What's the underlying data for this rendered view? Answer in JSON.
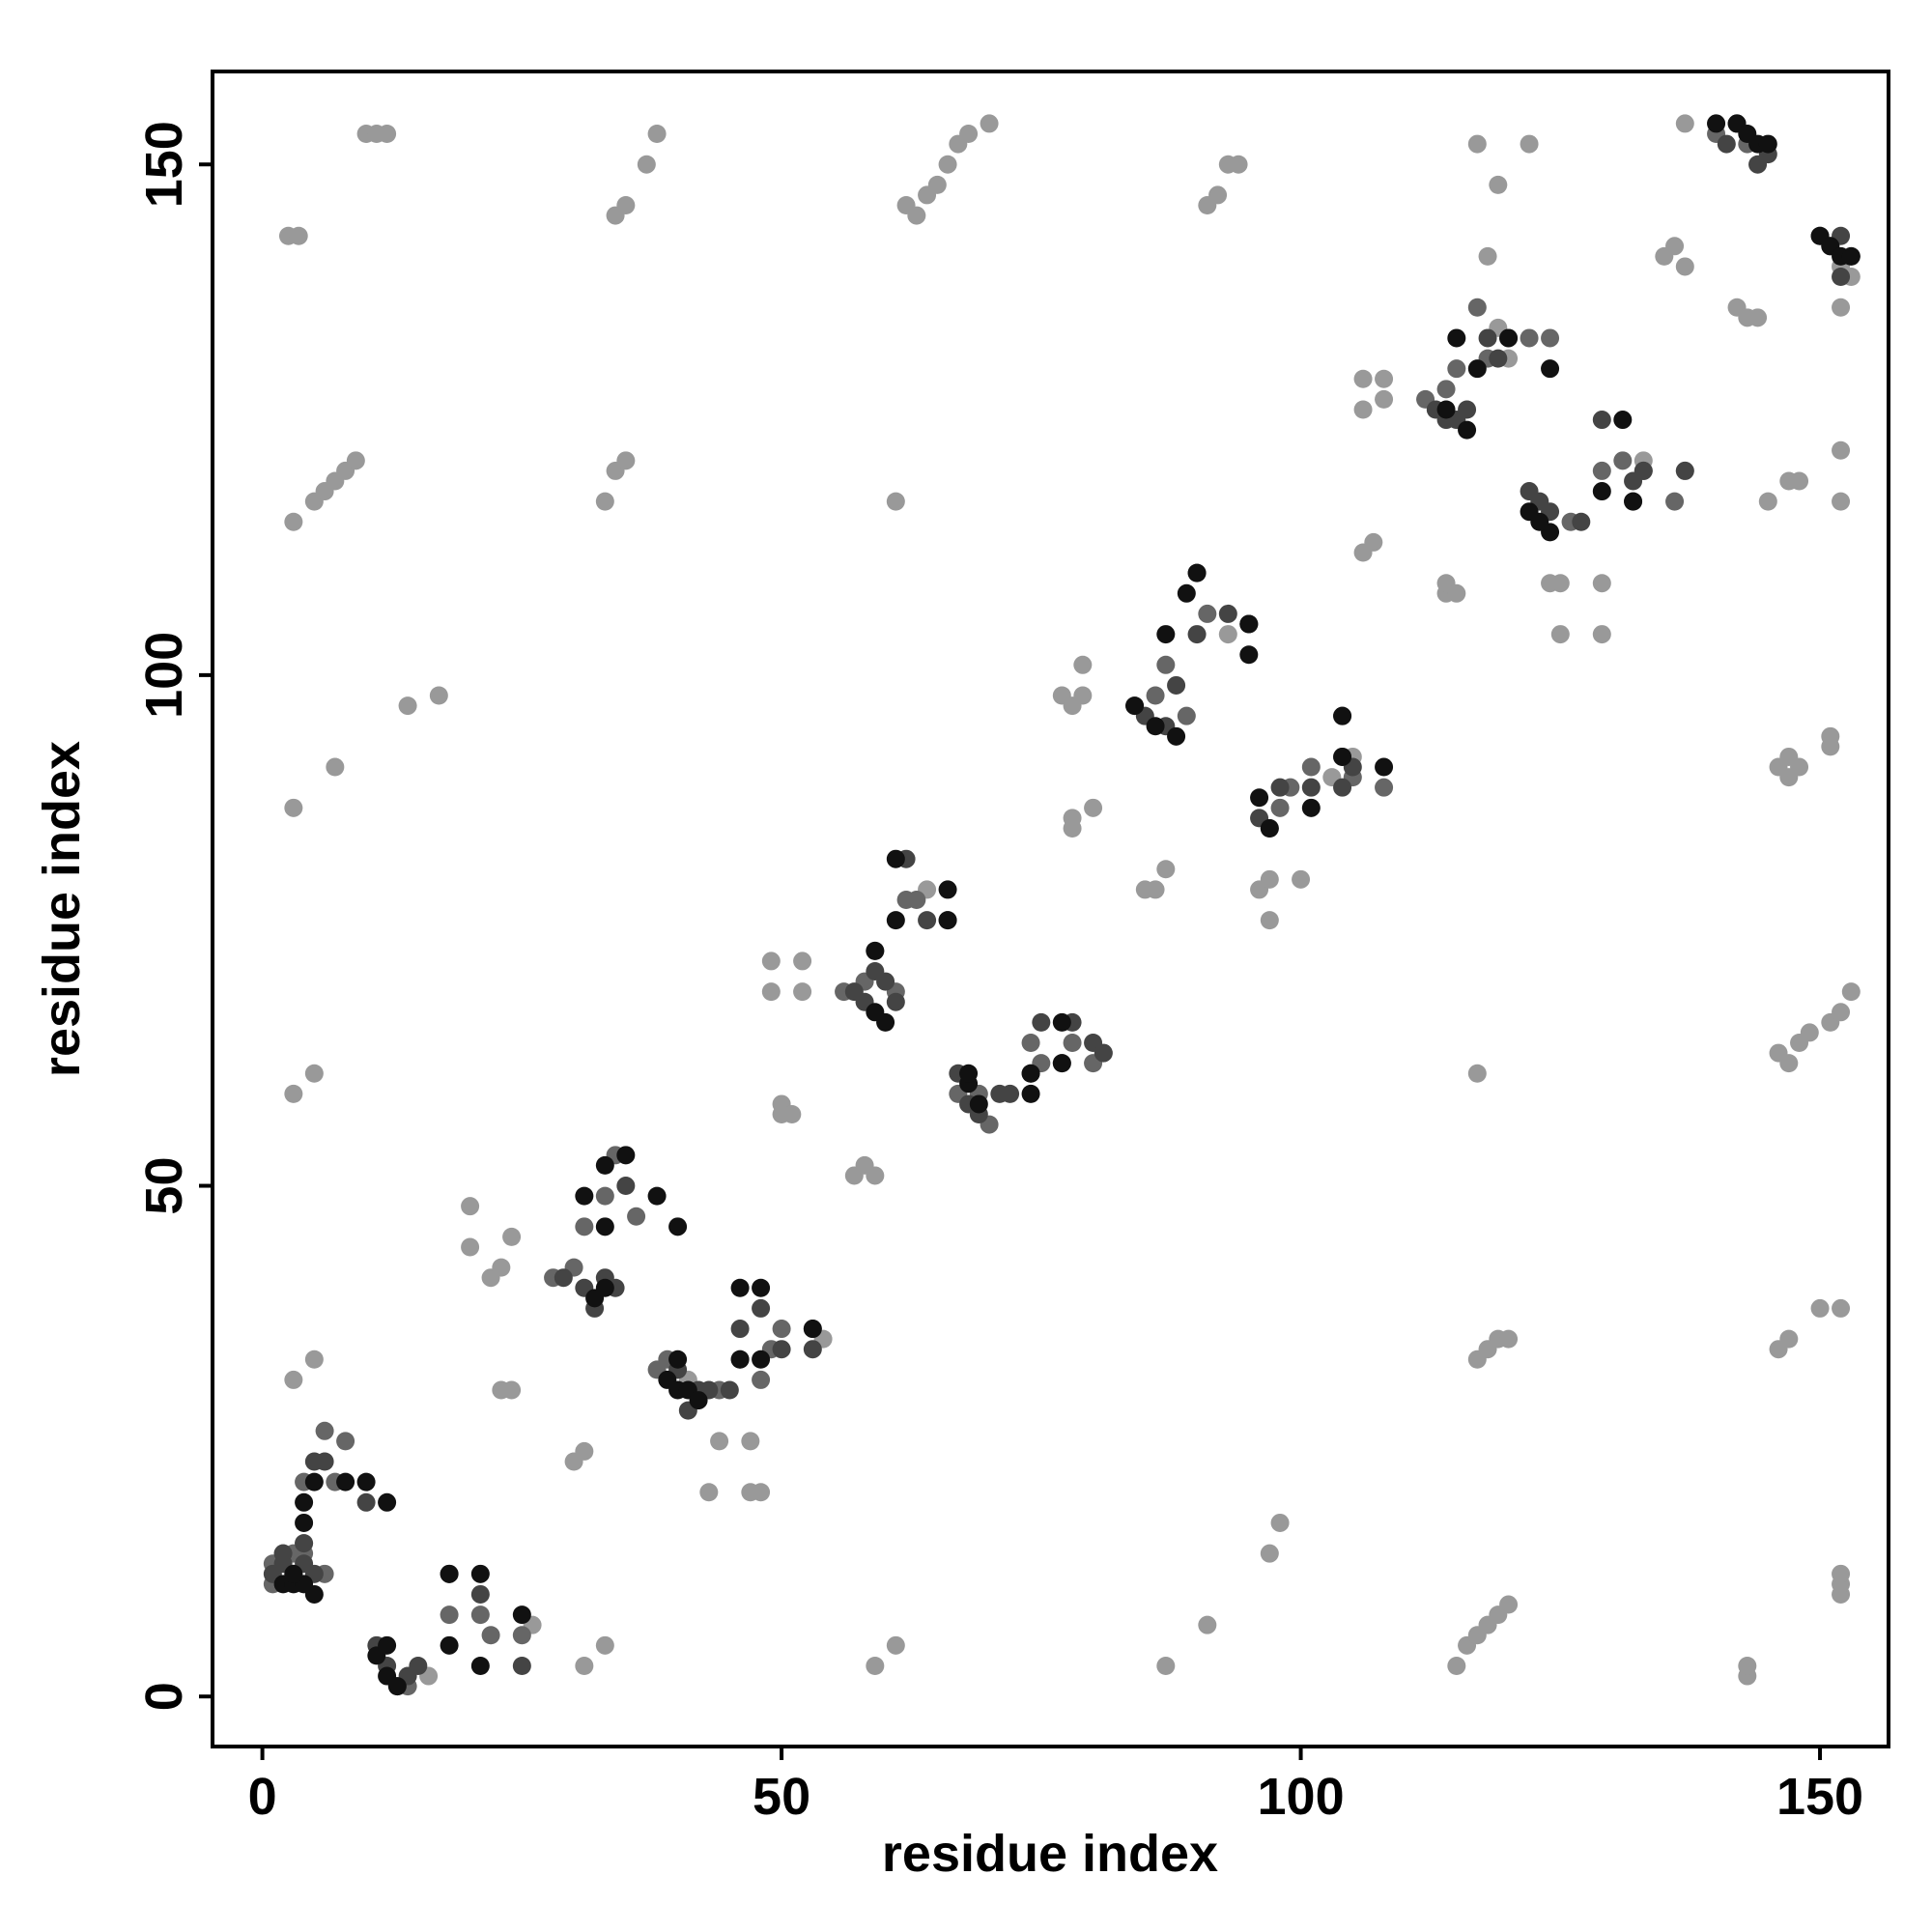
{
  "chart_data": {
    "type": "scatter",
    "x_label": "residue index",
    "y_label": "residue index",
    "xlim": [
      -4.8,
      156.6
    ],
    "ylim": [
      -4.9,
      159.1
    ],
    "xticks": [
      0,
      50,
      100,
      150
    ],
    "yticks": [
      0,
      50,
      100,
      150
    ],
    "grid": false,
    "series": [
      {
        "color": "#999999",
        "x": [
          2.5,
          3.5,
          10,
          11,
          12,
          37,
          38,
          34,
          35,
          62,
          63,
          64,
          65,
          66,
          67,
          68,
          70,
          91,
          92,
          93,
          94,
          117,
          122,
          118,
          119,
          137,
          140,
          3,
          5,
          6,
          7,
          8,
          9,
          33,
          34,
          35,
          61,
          3,
          7,
          14,
          17,
          3,
          5,
          3,
          5,
          145,
          147,
          148,
          152,
          152,
          151,
          151,
          146,
          147,
          147,
          148,
          146,
          147,
          148,
          149,
          151,
          152,
          153,
          117,
          117,
          118,
          119,
          120,
          146,
          147,
          150,
          152,
          152,
          152,
          152,
          143,
          143,
          115,
          116,
          117,
          118,
          119,
          120,
          98,
          97,
          91,
          87,
          61,
          59,
          33,
          31,
          20,
          20,
          22,
          23,
          24,
          23,
          24,
          30,
          31,
          48,
          43,
          44,
          47,
          47,
          49,
          49,
          52,
          52,
          50,
          50,
          51,
          57,
          58,
          59,
          77,
          78,
          79,
          79,
          78,
          78,
          80,
          85,
          86,
          87,
          96,
          97,
          100,
          97,
          106,
          106,
          108,
          108,
          106,
          107,
          114,
          114,
          115,
          124,
          125,
          125,
          129,
          129,
          142,
          143,
          144,
          152,
          152,
          136,
          137,
          135,
          2,
          4,
          16,
          26,
          41,
          54,
          64,
          81,
          93,
          103,
          105,
          119,
          120,
          133,
          137,
          153
        ],
        "values": [
          143,
          143,
          153,
          153,
          153,
          150,
          153,
          145,
          146,
          146,
          145,
          147,
          148,
          150,
          152,
          153,
          154,
          146,
          147,
          150,
          150,
          152,
          152,
          141,
          148,
          154,
          154,
          115,
          117,
          118,
          119,
          120,
          121,
          117,
          120,
          121,
          117,
          87,
          91,
          97,
          98,
          59,
          61,
          31,
          33,
          117,
          119,
          119,
          117,
          122,
          93,
          94,
          91,
          90,
          92,
          91,
          63,
          62,
          64,
          65,
          66,
          67,
          69,
          61,
          33,
          34,
          35,
          35,
          34,
          35,
          38,
          38,
          10,
          11,
          12,
          2,
          3,
          3,
          5,
          6,
          7,
          8,
          9,
          17,
          14,
          7,
          3,
          5,
          3,
          5,
          3,
          48,
          44,
          41,
          42,
          45,
          30,
          30,
          23,
          24,
          20,
          20,
          25,
          25,
          20,
          72,
          69,
          72,
          69,
          58,
          57,
          57,
          51,
          52,
          51,
          98,
          97,
          98,
          101,
          86,
          85,
          87,
          79,
          79,
          81,
          79,
          80,
          80,
          76,
          126,
          129,
          127,
          129,
          112,
          113,
          108,
          109,
          108,
          109,
          104,
          109,
          104,
          109,
          136,
          135,
          135,
          136,
          140,
          142,
          140,
          141,
          14,
          15,
          2,
          7,
          31,
          35,
          79,
          63,
          104,
          90,
          92,
          134,
          131,
          121,
          120,
          139
        ]
      },
      {
        "color": "#666666",
        "x": [
          1,
          1,
          3,
          4,
          6,
          7,
          8,
          13,
          14,
          18,
          22,
          25,
          28,
          30,
          34,
          36,
          38,
          39,
          44,
          46,
          49,
          53,
          56,
          58,
          61,
          63,
          66,
          67,
          69,
          70,
          74,
          77,
          80,
          84,
          86,
          89,
          91,
          95,
          98,
          99,
          101,
          104,
          108,
          112,
          114,
          118,
          120,
          122,
          124,
          126,
          129,
          131,
          133,
          136,
          140,
          143,
          150,
          153,
          4,
          6,
          21,
          31,
          33,
          48,
          50,
          59,
          62,
          75,
          78,
          87,
          90,
          104,
          105,
          115,
          117,
          132
        ],
        "values": [
          11,
          13,
          14,
          14,
          12,
          21,
          25,
          1,
          1,
          8,
          6,
          6,
          41,
          42,
          53,
          47,
          32,
          33,
          30,
          33,
          34,
          36,
          69,
          70,
          69,
          78,
          76,
          59,
          59,
          56,
          64,
          62,
          62,
          97,
          98,
          96,
          106,
          105,
          87,
          89,
          91,
          92,
          89,
          127,
          128,
          131,
          133,
          133,
          133,
          115,
          120,
          121,
          120,
          117,
          153,
          152,
          143,
          141,
          21,
          26,
          8,
          46,
          49,
          31,
          36,
          73,
          78,
          62,
          64,
          101,
          110,
          96,
          90,
          130,
          136,
          117
        ]
      },
      {
        "color": "#444444",
        "x": [
          1,
          2,
          2,
          3,
          4,
          4,
          5,
          5,
          6,
          10,
          11,
          12,
          14,
          15,
          18,
          21,
          25,
          29,
          31,
          32,
          33,
          34,
          35,
          40,
          41,
          42,
          43,
          45,
          46,
          48,
          50,
          53,
          57,
          58,
          59,
          60,
          61,
          62,
          64,
          67,
          68,
          69,
          71,
          72,
          74,
          75,
          78,
          80,
          81,
          85,
          87,
          88,
          90,
          93,
          95,
          96,
          97,
          98,
          101,
          104,
          105,
          113,
          114,
          115,
          116,
          118,
          119,
          122,
          123,
          124,
          127,
          129,
          132,
          133,
          137,
          141,
          142,
          144,
          145,
          151,
          152,
          152
        ],
        "values": [
          12,
          13,
          14,
          12,
          13,
          15,
          12,
          23,
          23,
          19,
          5,
          3,
          2,
          3,
          12,
          10,
          3,
          41,
          40,
          38,
          41,
          40,
          50,
          32,
          28,
          30,
          30,
          30,
          36,
          38,
          34,
          34,
          69,
          68,
          71,
          70,
          68,
          82,
          76,
          61,
          58,
          57,
          59,
          59,
          61,
          66,
          66,
          64,
          63,
          96,
          95,
          99,
          104,
          106,
          105,
          86,
          85,
          89,
          89,
          89,
          91,
          126,
          125,
          125,
          126,
          133,
          131,
          118,
          117,
          116,
          115,
          125,
          119,
          120,
          120,
          152,
          154,
          150,
          151,
          142,
          139,
          143
        ]
      },
      {
        "color": "#111111",
        "x": [
          2,
          3,
          4,
          5,
          3,
          4,
          4,
          5,
          8,
          10,
          12,
          11,
          12,
          12,
          13,
          18,
          18,
          21,
          21,
          25,
          31,
          32,
          33,
          33,
          33,
          35,
          38,
          40,
          39,
          40,
          41,
          40,
          42,
          46,
          46,
          48,
          48,
          53,
          59,
          60,
          59,
          61,
          61,
          66,
          66,
          68,
          69,
          68,
          74,
          74,
          77,
          77,
          84,
          86,
          88,
          87,
          89,
          90,
          95,
          95,
          96,
          97,
          101,
          104,
          104,
          108,
          114,
          116,
          115,
          117,
          120,
          124,
          124,
          123,
          122,
          129,
          131,
          132,
          140,
          142,
          143,
          144,
          145,
          150,
          151,
          152,
          153
        ],
        "values": [
          11,
          11,
          11,
          10,
          12,
          17,
          19,
          21,
          21,
          21,
          19,
          4,
          5,
          2,
          1,
          5,
          12,
          3,
          12,
          8,
          49,
          39,
          40,
          46,
          52,
          53,
          49,
          46,
          31,
          30,
          30,
          33,
          29,
          40,
          33,
          40,
          33,
          36,
          67,
          66,
          73,
          76,
          82,
          79,
          76,
          60,
          58,
          61,
          59,
          61,
          62,
          66,
          97,
          95,
          94,
          104,
          108,
          110,
          102,
          105,
          88,
          85,
          87,
          96,
          92,
          91,
          126,
          124,
          133,
          130,
          133,
          130,
          114,
          115,
          116,
          118,
          125,
          117,
          154,
          154,
          153,
          152,
          152,
          143,
          142,
          141,
          141
        ]
      }
    ]
  }
}
